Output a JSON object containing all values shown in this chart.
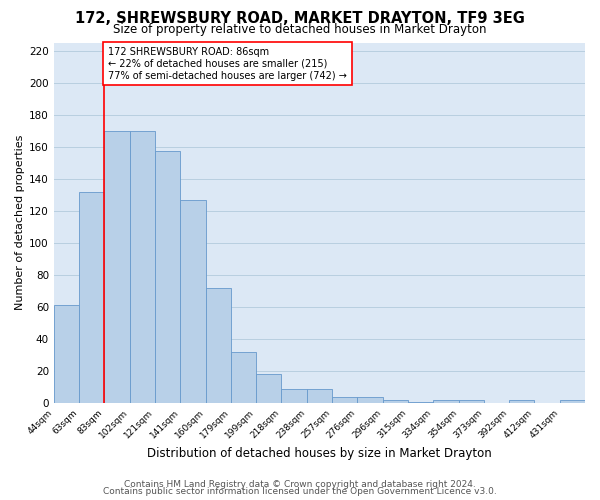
{
  "title": "172, SHREWSBURY ROAD, MARKET DRAYTON, TF9 3EG",
  "subtitle": "Size of property relative to detached houses in Market Drayton",
  "xlabel": "Distribution of detached houses by size in Market Drayton",
  "ylabel": "Number of detached properties",
  "bin_labels": [
    "44sqm",
    "63sqm",
    "83sqm",
    "102sqm",
    "121sqm",
    "141sqm",
    "160sqm",
    "179sqm",
    "199sqm",
    "218sqm",
    "238sqm",
    "257sqm",
    "276sqm",
    "296sqm",
    "315sqm",
    "334sqm",
    "354sqm",
    "373sqm",
    "392sqm",
    "412sqm",
    "431sqm"
  ],
  "n_bins": 21,
  "bar_heights": [
    61,
    132,
    170,
    170,
    157,
    127,
    72,
    32,
    18,
    9,
    9,
    4,
    4,
    2,
    1,
    2,
    2,
    0,
    2,
    0,
    2
  ],
  "bar_color": "#b8d0e8",
  "bar_edge_color": "#6699cc",
  "ylim": [
    0,
    225
  ],
  "yticks": [
    0,
    20,
    40,
    60,
    80,
    100,
    120,
    140,
    160,
    180,
    200,
    220
  ],
  "vline_bin": 2,
  "vline_color": "red",
  "annotation_line1": "172 SHREWSBURY ROAD: 86sqm",
  "annotation_line2": "← 22% of detached houses are smaller (215)",
  "annotation_line3": "77% of semi-detached houses are larger (742) →",
  "annotation_box_color": "white",
  "annotation_box_edgecolor": "red",
  "footer_line1": "Contains HM Land Registry data © Crown copyright and database right 2024.",
  "footer_line2": "Contains public sector information licensed under the Open Government Licence v3.0.",
  "fig_background_color": "#ffffff",
  "plot_background_color": "#dce8f5",
  "grid_color": "#b8cfe0",
  "title_fontsize": 10.5,
  "subtitle_fontsize": 8.5,
  "xlabel_fontsize": 8.5,
  "ylabel_fontsize": 8,
  "footer_fontsize": 6.5
}
